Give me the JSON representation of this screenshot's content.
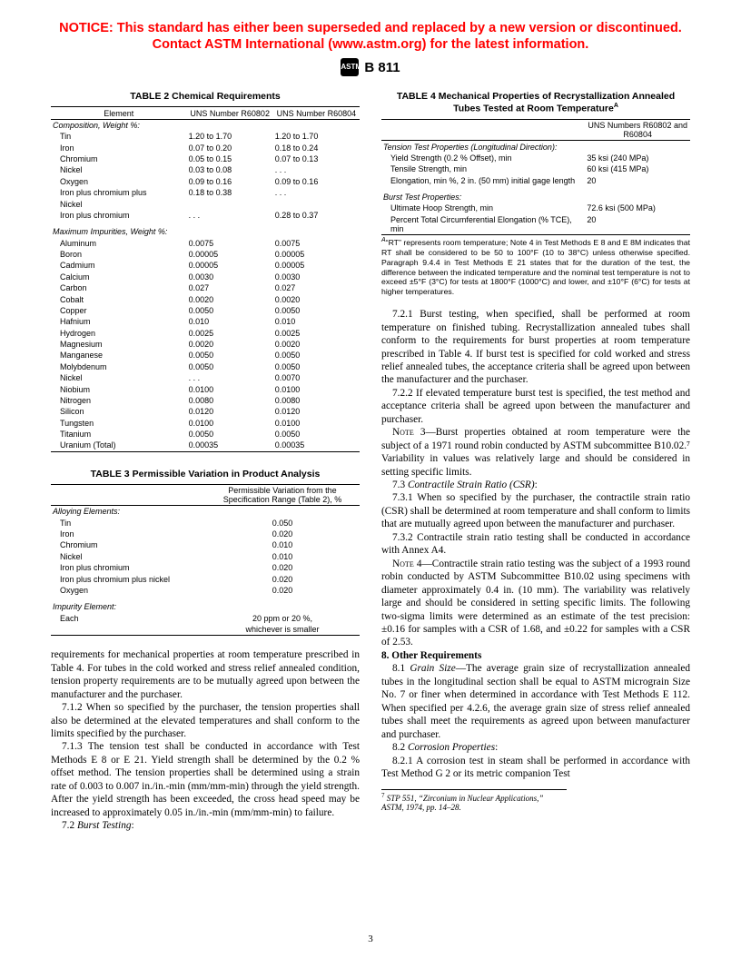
{
  "notice": {
    "line1": "NOTICE: This standard has either been superseded and replaced by a new version or discontinued.",
    "line2": "Contact ASTM International (www.astm.org) for the latest information."
  },
  "header": {
    "badge": "ASTM",
    "doc_number": "B 811"
  },
  "table2": {
    "title": "TABLE 2  Chemical Requirements",
    "col_headers": {
      "c1": "Element",
      "c2": "UNS Number R60802",
      "c3": "UNS Number R60804"
    },
    "group1_title": "Composition, Weight %:",
    "group1_rows": [
      {
        "e": "Tin",
        "a": "1.20 to 1.70",
        "b": "1.20 to 1.70"
      },
      {
        "e": "Iron",
        "a": "0.07 to 0.20",
        "b": "0.18 to 0.24"
      },
      {
        "e": "Chromium",
        "a": "0.05 to 0.15",
        "b": "0.07 to 0.13"
      },
      {
        "e": "Nickel",
        "a": "0.03 to 0.08",
        "b": ". . ."
      },
      {
        "e": "Oxygen",
        "a": "0.09 to 0.16",
        "b": "0.09 to 0.16"
      },
      {
        "e": "Iron plus chromium plus",
        "a": "0.18 to 0.38",
        "b": ". . ."
      },
      {
        "e": "Nickel",
        "a": "",
        "b": ""
      },
      {
        "e": "Iron plus chromium",
        "a": ". . .",
        "b": "0.28 to 0.37"
      }
    ],
    "group2_title": "Maximum Impurities, Weight %:",
    "group2_rows": [
      {
        "e": "Aluminum",
        "a": "0.0075",
        "b": "0.0075"
      },
      {
        "e": "Boron",
        "a": "0.00005",
        "b": "0.00005"
      },
      {
        "e": "Cadmium",
        "a": "0.00005",
        "b": "0.00005"
      },
      {
        "e": "Calcium",
        "a": "0.0030",
        "b": "0.0030"
      },
      {
        "e": "Carbon",
        "a": "0.027",
        "b": "0.027"
      },
      {
        "e": "Cobalt",
        "a": "0.0020",
        "b": "0.0020"
      },
      {
        "e": "Copper",
        "a": "0.0050",
        "b": "0.0050"
      },
      {
        "e": "Hafnium",
        "a": "0.010",
        "b": "0.010"
      },
      {
        "e": "Hydrogen",
        "a": "0.0025",
        "b": "0.0025"
      },
      {
        "e": "Magnesium",
        "a": "0.0020",
        "b": "0.0020"
      },
      {
        "e": "Manganese",
        "a": "0.0050",
        "b": "0.0050"
      },
      {
        "e": "Molybdenum",
        "a": "0.0050",
        "b": "0.0050"
      },
      {
        "e": "Nickel",
        "a": ". . .",
        "b": "0.0070"
      },
      {
        "e": "Niobium",
        "a": "0.0100",
        "b": "0.0100"
      },
      {
        "e": "Nitrogen",
        "a": "0.0080",
        "b": "0.0080"
      },
      {
        "e": "Silicon",
        "a": "0.0120",
        "b": "0.0120"
      },
      {
        "e": "Tungsten",
        "a": "0.0100",
        "b": "0.0100"
      },
      {
        "e": "Titanium",
        "a": "0.0050",
        "b": "0.0050"
      },
      {
        "e": "Uranium (Total)",
        "a": "0.00035",
        "b": "0.00035"
      }
    ]
  },
  "table3": {
    "title": "TABLE 3  Permissible Variation in Product Analysis",
    "col_headers": {
      "c1": "",
      "c2": "Permissible Variation from the Specification Range (Table 2), %"
    },
    "group1_title": "Alloying Elements:",
    "group1_rows": [
      {
        "e": "Tin",
        "v": "0.050"
      },
      {
        "e": "Iron",
        "v": "0.020"
      },
      {
        "e": "Chromium",
        "v": "0.010"
      },
      {
        "e": "Nickel",
        "v": "0.010"
      },
      {
        "e": "Iron plus chromium",
        "v": "0.020"
      },
      {
        "e": "Iron plus chromium plus nickel",
        "v": "0.020"
      },
      {
        "e": "Oxygen",
        "v": "0.020"
      }
    ],
    "group2_title": "Impurity Element:",
    "group2_rows": [
      {
        "e": "Each",
        "v1": "20 ppm or 20 %,",
        "v2": "whichever is smaller"
      }
    ]
  },
  "table4": {
    "title_l1": "TABLE 4  Mechanical Properties of Recrystallization Annealed",
    "title_l2": "Tubes Tested at Room Temperature",
    "title_sup": "A",
    "col_headers": {
      "c1": "",
      "c2": "UNS Numbers R60802 and R60804"
    },
    "group1_title": "Tension Test Properties (Longitudinal Direction):",
    "group1_rows": [
      {
        "e": "Yield Strength (0.2 % Offset), min",
        "v": "35 ksi (240 MPa)"
      },
      {
        "e": "Tensile Strength, min",
        "v": "60 ksi (415 MPa)"
      },
      {
        "e": "Elongation, min %, 2 in. (50 mm) initial gage length",
        "v": "20"
      }
    ],
    "group2_title": "Burst Test Properties:",
    "group2_rows": [
      {
        "e": "Ultimate Hoop Strength, min",
        "v": "72.6 ksi (500 MPa)"
      },
      {
        "e": "Percent Total Circumferential Elongation (% TCE), min",
        "v": "20"
      }
    ],
    "footnote": "“RT” represents room temperature; Note 4 in Test Methods E 8 and E 8M indicates that RT shall be considered to be 50 to 100°F (10 to 38°C) unless otherwise specified. Paragraph 9.4.4 in Test Methods E 21 states that for the duration of the test, the difference between the indicated temperature and the nominal test temperature is not to exceed ±5°F (3°C) for tests at 1800°F (1000°C) and lower, and ±10°F (6°C) for tests at higher temperatures."
  },
  "left_body": {
    "p1": "requirements for mechanical properties at room temperature prescribed in Table 4. For tubes in the cold worked and stress relief annealed condition, tension property requirements are to be mutually agreed upon between the manufacturer and the purchaser.",
    "p2": "7.1.2 When so specified by the purchaser, the tension properties shall also be determined at the elevated temperatures and shall conform to the limits specified by the purchaser.",
    "p3": "7.1.3 The tension test shall be conducted in accordance with Test Methods E 8 or E 21. Yield strength shall be determined by the 0.2 % offset method. The tension properties shall be determined using a strain rate of 0.003 to 0.007 in./in.-min (mm/mm-min) through the yield strength. After the yield strength has been exceeded, the cross head speed may be increased to approximately 0.05 in./in.-min (mm/mm-min) to failure.",
    "p4_label": "7.2 ",
    "p4_title": "Burst Testing",
    "p4_colon": ":"
  },
  "right_body": {
    "p721": "7.2.1 Burst testing, when specified, shall be performed at room temperature on finished tubing. Recrystallization annealed tubes shall conform to the requirements for burst properties at room temperature prescribed in Table 4. If burst test is specified for cold worked and stress relief annealed tubes, the acceptance criteria shall be agreed upon between the manufacturer and the purchaser.",
    "p722": "7.2.2 If elevated temperature burst test is specified, the test method and acceptance criteria shall be agreed upon between the manufacturer and purchaser.",
    "note3_label": "Note 3—",
    "note3": "Burst properties obtained at room temperature were the subject of a 1971 round robin conducted by ASTM subcommittee B10.02.⁷ Variability in values was relatively large and should be considered in setting specific limits.",
    "p73_label": "7.3 ",
    "p73_title": "Contractile Strain Ratio (CSR)",
    "p73_colon": ":",
    "p731": "7.3.1 When so specified by the purchaser, the contractile strain ratio (CSR) shall be determined at room temperature and shall conform to limits that are mutually agreed upon between the manufacturer and purchaser.",
    "p732": "7.3.2 Contractile strain ratio testing shall be conducted in accordance with Annex A4.",
    "note4_label": "Note 4—",
    "note4": "Contractile strain ratio testing was the subject of a 1993 round robin conducted by ASTM Subcommittee B10.02 using specimens with diameter approximately 0.4 in. (10 mm). The variability was relatively large and should be considered in setting specific limits. The following two-sigma limits were determined as an estimate of the test precision: ±0.16 for samples with a CSR of 1.68, and ±0.22 for samples with a CSR of 2.53.",
    "s8_title": "8.  Other Requirements",
    "p81_label": "8.1 ",
    "p81_title": "Grain Size",
    "p81_body": "—The average grain size of recrystallization annealed tubes in the longitudinal section shall be equal to ASTM micrograin Size No. 7 or finer when determined in accordance with Test Methods E 112. When specified per 4.2.6, the average grain size of stress relief annealed tubes shall meet the requirements as agreed upon between manufacturer and purchaser.",
    "p82_label": "8.2 ",
    "p82_title": "Corrosion Properties",
    "p82_colon": ":",
    "p821": "8.2.1 A corrosion test in steam shall be performed in accordance with Test Method G 2 or its metric companion Test",
    "citation_sup": "7",
    "citation_text": " STP 551, “Zirconium in Nuclear Applications,” ASTM, 1974, pp. 14–28."
  },
  "page_number": "3"
}
